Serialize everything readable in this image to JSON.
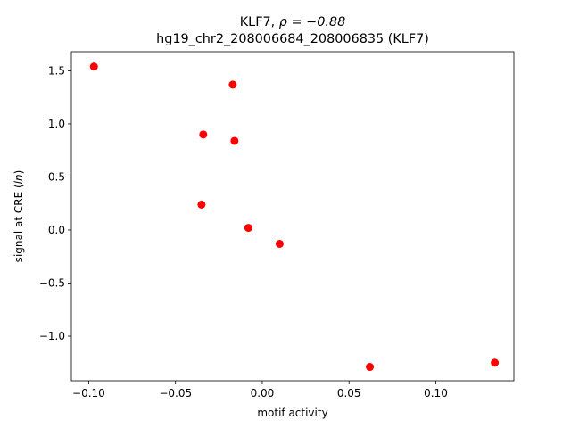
{
  "chart_data": {
    "type": "scatter",
    "title_line1_prefix": "KLF7, ",
    "title_line1_rho": "ρ = −0.88",
    "title_line2": "hg19_chr2_208006684_208006835 (KLF7)",
    "xlabel": "motif activity",
    "ylabel_prefix": "signal at CRE (",
    "ylabel_italic": "ln",
    "ylabel_suffix": ")",
    "xlim": [
      -0.11,
      0.145
    ],
    "ylim": [
      -1.42,
      1.68
    ],
    "xticks": [
      -0.1,
      -0.05,
      0.0,
      0.05,
      0.1
    ],
    "xtick_labels": [
      "−0.10",
      "−0.05",
      "0.00",
      "0.05",
      "0.10"
    ],
    "yticks": [
      -1.0,
      -0.5,
      0.0,
      0.5,
      1.0,
      1.5
    ],
    "ytick_labels": [
      "−1.0",
      "−0.5",
      "0.0",
      "0.5",
      "1.0",
      "1.5"
    ],
    "grid": false,
    "marker_color": "#ff0000",
    "points": [
      {
        "x": -0.097,
        "y": 1.54
      },
      {
        "x": -0.017,
        "y": 1.37
      },
      {
        "x": -0.034,
        "y": 0.9
      },
      {
        "x": -0.016,
        "y": 0.84
      },
      {
        "x": -0.035,
        "y": 0.24
      },
      {
        "x": -0.008,
        "y": 0.02
      },
      {
        "x": 0.01,
        "y": -0.13
      },
      {
        "x": 0.062,
        "y": -1.29
      },
      {
        "x": 0.134,
        "y": -1.25
      }
    ]
  }
}
